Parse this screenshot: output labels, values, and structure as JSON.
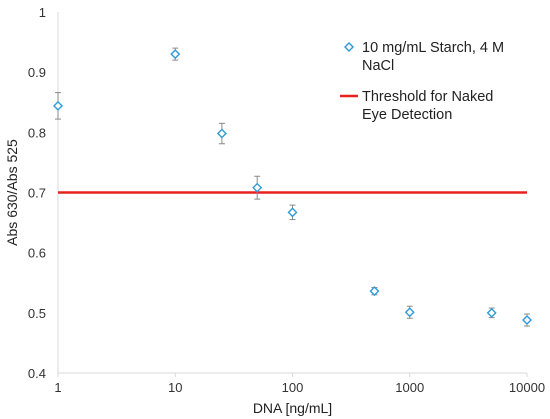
{
  "chart_data": {
    "type": "scatter",
    "xscale": "log",
    "xlim": [
      1,
      10000
    ],
    "ylim": [
      0.4,
      1.0
    ],
    "xticks": [
      1,
      10,
      100,
      1000,
      10000
    ],
    "xtick_labels": [
      "1",
      "10",
      "100",
      "1000",
      "10000"
    ],
    "yticks": [
      0.4,
      0.5,
      0.6,
      0.7,
      0.8,
      0.9,
      1.0
    ],
    "ytick_labels": [
      "0.4",
      "0.5",
      "0.6",
      "0.7",
      "0.8",
      "0.9",
      "1"
    ],
    "xlabel": "DNA [ng/mL]",
    "ylabel": "Abs 630/Abs 525",
    "grid": false,
    "legend_position": "top-right",
    "series": [
      {
        "name": "10 mg/mL Starch, 4 M NaCl",
        "legend_lines": [
          "10 mg/mL Starch, 4 M",
          "NaCl"
        ],
        "marker": "diamond-open",
        "color": "#2e9bd6",
        "x": [
          1,
          10,
          25,
          50,
          100,
          500,
          1000,
          5000,
          10000
        ],
        "y": [
          0.844,
          0.93,
          0.798,
          0.708,
          0.667,
          0.536,
          0.501,
          0.5,
          0.488
        ],
        "error": [
          0.022,
          0.01,
          0.017,
          0.019,
          0.012,
          0.006,
          0.01,
          0.008,
          0.01
        ]
      }
    ],
    "threshold": {
      "name": "Threshold for Naked Eye Detection",
      "legend_lines": [
        "Threshold for Naked",
        "Eye Detection"
      ],
      "y": 0.7,
      "color": "#e8211f"
    }
  }
}
